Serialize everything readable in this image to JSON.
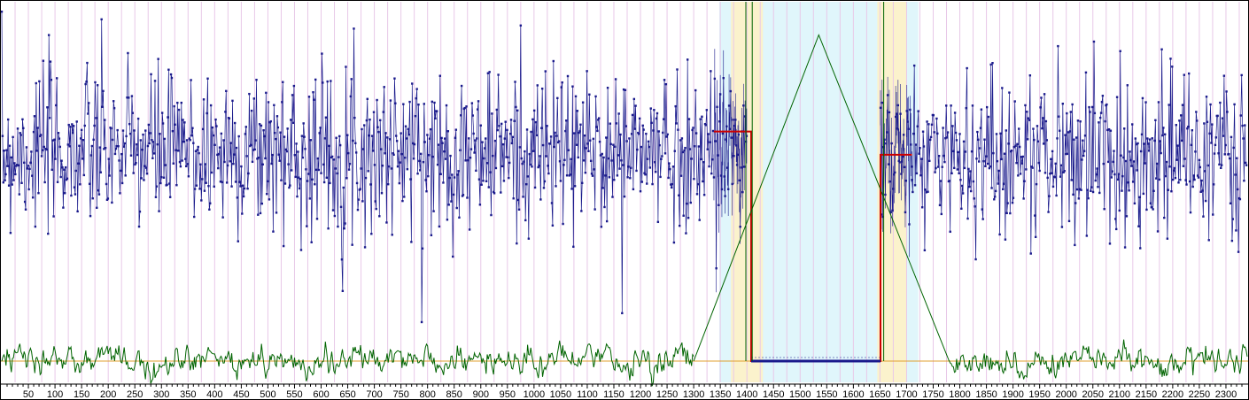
{
  "chart_data": {
    "type": "line",
    "title": "",
    "xlabel": "",
    "ylabel": "",
    "xlim": [
      0,
      2340
    ],
    "x_ticks": [
      "50",
      "100",
      "150",
      "200",
      "250",
      "300",
      "350",
      "400",
      "450",
      "500",
      "550",
      "600",
      "650",
      "700",
      "750",
      "800",
      "850",
      "900",
      "950",
      "1000",
      "1050",
      "1100",
      "1150",
      "1200",
      "1250",
      "1300",
      "1350",
      "1400",
      "1450",
      "1500",
      "1550",
      "1600",
      "1650",
      "1700",
      "1750",
      "1800",
      "1850",
      "1900",
      "1950",
      "2000",
      "2050",
      "2100",
      "2150",
      "2200",
      "2250",
      "2300"
    ],
    "grid": true,
    "legend": "none",
    "noise_seed": 7,
    "point_spacing": 1.5,
    "series": [
      {
        "kind": "scatter-line",
        "color": "#1a1a8c",
        "segments": [
          {
            "x_start": 0,
            "x_end": 1338,
            "mean": 0.63,
            "spread": 0.12
          },
          {
            "x_start": 1338,
            "x_end": 1400,
            "mean": 0.66,
            "spread": 0.12,
            "with_error_bars": true
          },
          {
            "x_start": 1651,
            "x_end": 1710,
            "mean": 0.61,
            "spread": 0.12,
            "with_error_bars": true
          },
          {
            "x_start": 1710,
            "x_end": 2340,
            "mean": 0.62,
            "spread": 0.12
          }
        ]
      },
      {
        "kind": "step",
        "color": "#cc0000",
        "points": [
          [
            1338,
            0.69
          ],
          [
            1400,
            0.69
          ],
          [
            1400,
            0.69
          ],
          [
            1408,
            0.69
          ],
          [
            1408,
            0.0
          ],
          [
            1651,
            0.0
          ],
          [
            1651,
            0.62
          ],
          [
            1710,
            0.62
          ]
        ]
      },
      {
        "kind": "flat-line",
        "color": "#1a1a8c",
        "x_start": 1408,
        "x_end": 1651,
        "y": 0.0
      },
      {
        "kind": "noise-line",
        "color": "#006400",
        "baseline": 0.0,
        "spread": 0.025,
        "segments": [
          {
            "x_start": 0,
            "x_end": 1300
          },
          {
            "x_start": 1780,
            "x_end": 2340
          }
        ]
      },
      {
        "kind": "triangle",
        "color": "#006400",
        "points": [
          [
            1300,
            0.0
          ],
          [
            1535,
            0.98
          ],
          [
            1780,
            0.0
          ]
        ]
      },
      {
        "kind": "vertical-lines",
        "color": "#006400",
        "x": [
          1398,
          1410,
          1657
        ]
      }
    ],
    "reference_lines": [
      {
        "y": 0.0,
        "color": "#e0a030"
      }
    ],
    "shaded_regions": [
      {
        "x_start": 1348,
        "x_end": 1722,
        "color": "#e0f6fb"
      },
      {
        "x_start": 1370,
        "x_end": 1430,
        "color": "#fbf2cc"
      },
      {
        "x_start": 1645,
        "x_end": 1700,
        "color": "#fbf2cc"
      }
    ],
    "ylim": [
      -0.02,
      1.08
    ]
  }
}
